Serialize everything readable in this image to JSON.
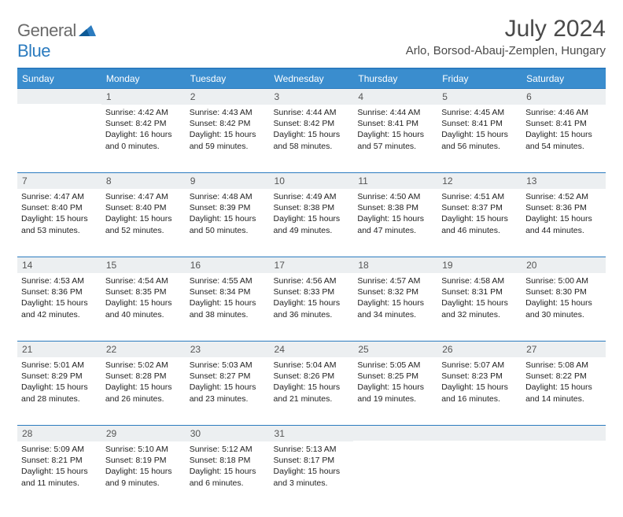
{
  "brand": {
    "general": "General",
    "blue": "Blue"
  },
  "title": "July 2024",
  "location": "Arlo, Borsod-Abauj-Zemplen, Hungary",
  "colors": {
    "header_bg": "#3a8dce",
    "accent_line": "#2b7bbf",
    "daynum_bg": "#eceff1",
    "text_dark": "#222",
    "text_mid": "#4a4a4a"
  },
  "weekdays": [
    "Sunday",
    "Monday",
    "Tuesday",
    "Wednesday",
    "Thursday",
    "Friday",
    "Saturday"
  ],
  "start_offset": 1,
  "days": [
    {
      "n": 1,
      "sr": "4:42 AM",
      "ss": "8:42 PM",
      "dl": "16 hours and 0 minutes."
    },
    {
      "n": 2,
      "sr": "4:43 AM",
      "ss": "8:42 PM",
      "dl": "15 hours and 59 minutes."
    },
    {
      "n": 3,
      "sr": "4:44 AM",
      "ss": "8:42 PM",
      "dl": "15 hours and 58 minutes."
    },
    {
      "n": 4,
      "sr": "4:44 AM",
      "ss": "8:41 PM",
      "dl": "15 hours and 57 minutes."
    },
    {
      "n": 5,
      "sr": "4:45 AM",
      "ss": "8:41 PM",
      "dl": "15 hours and 56 minutes."
    },
    {
      "n": 6,
      "sr": "4:46 AM",
      "ss": "8:41 PM",
      "dl": "15 hours and 54 minutes."
    },
    {
      "n": 7,
      "sr": "4:47 AM",
      "ss": "8:40 PM",
      "dl": "15 hours and 53 minutes."
    },
    {
      "n": 8,
      "sr": "4:47 AM",
      "ss": "8:40 PM",
      "dl": "15 hours and 52 minutes."
    },
    {
      "n": 9,
      "sr": "4:48 AM",
      "ss": "8:39 PM",
      "dl": "15 hours and 50 minutes."
    },
    {
      "n": 10,
      "sr": "4:49 AM",
      "ss": "8:38 PM",
      "dl": "15 hours and 49 minutes."
    },
    {
      "n": 11,
      "sr": "4:50 AM",
      "ss": "8:38 PM",
      "dl": "15 hours and 47 minutes."
    },
    {
      "n": 12,
      "sr": "4:51 AM",
      "ss": "8:37 PM",
      "dl": "15 hours and 46 minutes."
    },
    {
      "n": 13,
      "sr": "4:52 AM",
      "ss": "8:36 PM",
      "dl": "15 hours and 44 minutes."
    },
    {
      "n": 14,
      "sr": "4:53 AM",
      "ss": "8:36 PM",
      "dl": "15 hours and 42 minutes."
    },
    {
      "n": 15,
      "sr": "4:54 AM",
      "ss": "8:35 PM",
      "dl": "15 hours and 40 minutes."
    },
    {
      "n": 16,
      "sr": "4:55 AM",
      "ss": "8:34 PM",
      "dl": "15 hours and 38 minutes."
    },
    {
      "n": 17,
      "sr": "4:56 AM",
      "ss": "8:33 PM",
      "dl": "15 hours and 36 minutes."
    },
    {
      "n": 18,
      "sr": "4:57 AM",
      "ss": "8:32 PM",
      "dl": "15 hours and 34 minutes."
    },
    {
      "n": 19,
      "sr": "4:58 AM",
      "ss": "8:31 PM",
      "dl": "15 hours and 32 minutes."
    },
    {
      "n": 20,
      "sr": "5:00 AM",
      "ss": "8:30 PM",
      "dl": "15 hours and 30 minutes."
    },
    {
      "n": 21,
      "sr": "5:01 AM",
      "ss": "8:29 PM",
      "dl": "15 hours and 28 minutes."
    },
    {
      "n": 22,
      "sr": "5:02 AM",
      "ss": "8:28 PM",
      "dl": "15 hours and 26 minutes."
    },
    {
      "n": 23,
      "sr": "5:03 AM",
      "ss": "8:27 PM",
      "dl": "15 hours and 23 minutes."
    },
    {
      "n": 24,
      "sr": "5:04 AM",
      "ss": "8:26 PM",
      "dl": "15 hours and 21 minutes."
    },
    {
      "n": 25,
      "sr": "5:05 AM",
      "ss": "8:25 PM",
      "dl": "15 hours and 19 minutes."
    },
    {
      "n": 26,
      "sr": "5:07 AM",
      "ss": "8:23 PM",
      "dl": "15 hours and 16 minutes."
    },
    {
      "n": 27,
      "sr": "5:08 AM",
      "ss": "8:22 PM",
      "dl": "15 hours and 14 minutes."
    },
    {
      "n": 28,
      "sr": "5:09 AM",
      "ss": "8:21 PM",
      "dl": "15 hours and 11 minutes."
    },
    {
      "n": 29,
      "sr": "5:10 AM",
      "ss": "8:19 PM",
      "dl": "15 hours and 9 minutes."
    },
    {
      "n": 30,
      "sr": "5:12 AM",
      "ss": "8:18 PM",
      "dl": "15 hours and 6 minutes."
    },
    {
      "n": 31,
      "sr": "5:13 AM",
      "ss": "8:17 PM",
      "dl": "15 hours and 3 minutes."
    }
  ],
  "labels": {
    "sunrise": "Sunrise:",
    "sunset": "Sunset:",
    "daylight": "Daylight:"
  }
}
